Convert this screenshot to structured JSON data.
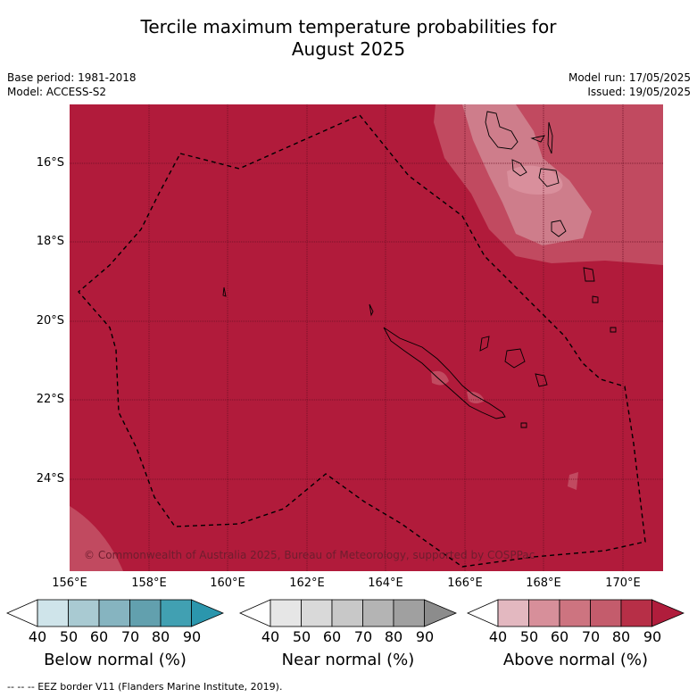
{
  "title_line1": "Tercile maximum temperature probabilities for",
  "title_line2": "August 2025",
  "base_period": "Base period: 1981-2018",
  "model": "Model: ACCESS-S2",
  "model_run": "Model run: 17/05/2025",
  "issued": "Issued: 19/05/2025",
  "copyright": "© Commonwealth of Australia 2025, Bureau of Meteorology, supported by COSPPac",
  "footnote": "--  --  -- EEZ border V11 (Flanders Marine Institute, 2019).",
  "latitude_labels": [
    "16°S",
    "18°S",
    "20°S",
    "22°S",
    "24°S"
  ],
  "longitude_labels": [
    "156°E",
    "158°E",
    "160°E",
    "162°E",
    "164°E",
    "166°E",
    "168°E",
    "170°E"
  ],
  "colorbars": [
    {
      "title": "Below normal (%)",
      "ticks": [
        "40",
        "50",
        "60",
        "70",
        "80",
        "90"
      ],
      "colors": [
        "#ffffff",
        "#cfe4ea",
        "#a9cad2",
        "#86b4c0",
        "#62a0ae",
        "#41a0b2",
        "#2b96ad"
      ]
    },
    {
      "title": "Near normal (%)",
      "ticks": [
        "40",
        "50",
        "60",
        "70",
        "80",
        "90"
      ],
      "colors": [
        "#ffffff",
        "#e6e6e6",
        "#d9d9d9",
        "#c8c8c8",
        "#b4b4b4",
        "#a0a0a0",
        "#8c8c8c"
      ]
    },
    {
      "title": "Above normal (%)",
      "ticks": [
        "40",
        "50",
        "60",
        "70",
        "80",
        "90"
      ],
      "colors": [
        "#ffffff",
        "#e3b8c0",
        "#d78f9a",
        "#cd7480",
        "#c45c6c",
        "#b72f47",
        "#b01d3c"
      ]
    }
  ],
  "map_colors": {
    "background": "#b11b3b",
    "lighter": "#c14a60",
    "lightest": "#ce7d8b",
    "grid": "#6b1023"
  }
}
